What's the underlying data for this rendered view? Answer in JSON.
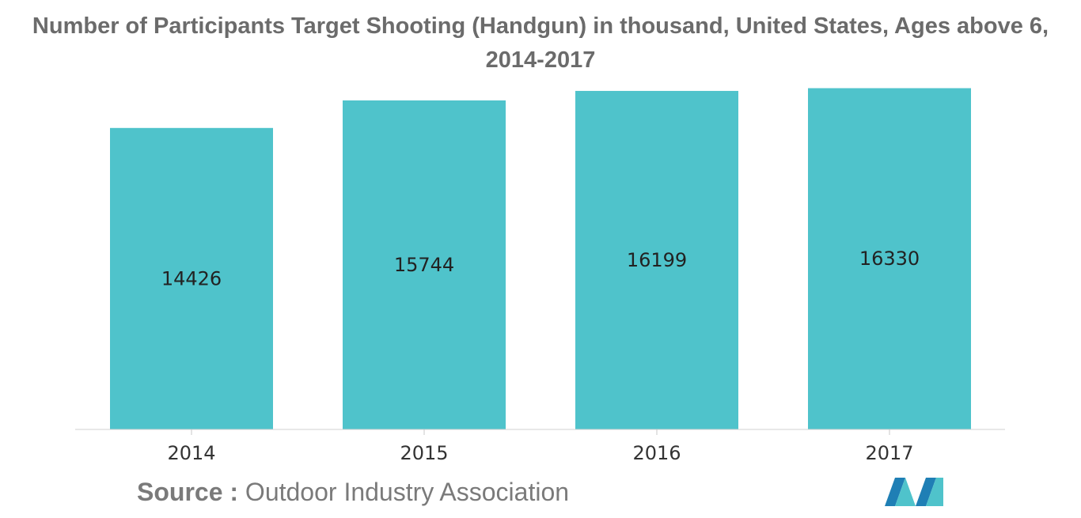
{
  "chart_data": {
    "type": "bar",
    "title": "Number of Participants Target Shooting (Handgun) in thousand, United States, Ages above 6, 2014-2017",
    "categories": [
      "2014",
      "2015",
      "2016",
      "2017"
    ],
    "values": [
      14426,
      15744,
      16199,
      16330
    ],
    "xlabel": "",
    "ylabel": "",
    "ylim": [
      0,
      16500
    ],
    "grid": false,
    "legend": "none",
    "bar_color": "#4fc3cb",
    "data_labels": true
  },
  "source": {
    "label": "Source :",
    "text": "Outdoor Industry Association"
  },
  "logo": {
    "icon": "mordor-intelligence-logo",
    "colors": [
      "#1f7fb5",
      "#4fc3cb"
    ]
  }
}
